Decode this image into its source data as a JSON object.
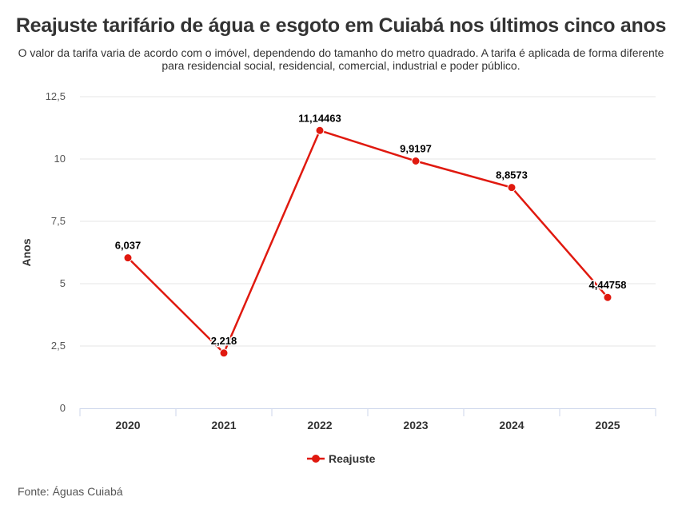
{
  "title": "Reajuste tarifário de água e esgoto em Cuiabá nos últimos cinco anos",
  "subtitle": "O valor da tarifa varia de acordo com o imóvel, dependendo do tamanho do metro quadrado. A tarifa é aplicada de forma diferente para residencial social, residencial, comercial, industrial e poder público.",
  "source": "Fonte: Águas Cuiabá",
  "colors": {
    "series": "#e0190f",
    "grid": "#e6e6e6",
    "axis": "#ccd6eb"
  },
  "chart_data": {
    "type": "line",
    "categories": [
      "2020",
      "2021",
      "2022",
      "2023",
      "2024",
      "2025"
    ],
    "ylabel": "Anos",
    "xlabel": "",
    "ylim": [
      0,
      12.5
    ],
    "yticks": [
      0,
      2.5,
      5,
      7.5,
      10,
      12.5
    ],
    "ytick_labels": [
      "0",
      "2,5",
      "5",
      "7,5",
      "10",
      "12,5"
    ],
    "grid": true,
    "legend": "bottom-center",
    "series": [
      {
        "name": "Reajuste",
        "values": [
          6.037,
          2.218,
          11.14463,
          9.9197,
          8.8573,
          4.44758
        ],
        "labels": [
          "6,037",
          "2,218",
          "11,14463",
          "9,9197",
          "8,8573",
          "4,44758"
        ]
      }
    ]
  }
}
